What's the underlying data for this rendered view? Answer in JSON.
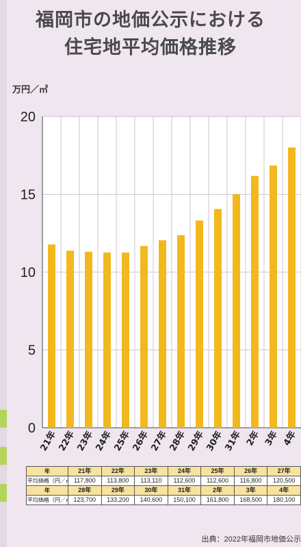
{
  "title_line1": "福岡市の地価公示における",
  "title_line2": "住宅地平均価格推移",
  "unit_label": "万円／㎡",
  "source": "出典：2022年福岡市地価公示",
  "colors": {
    "bar": "#f2b81e",
    "background": "#efe6ef",
    "grid": "#cfc6cf"
  },
  "chart_data": {
    "type": "bar",
    "categories": [
      "21年",
      "22年",
      "23年",
      "24年",
      "25年",
      "26年",
      "27年",
      "28年",
      "29年",
      "30年",
      "31年",
      "2年",
      "3年",
      "4年"
    ],
    "values": [
      11.78,
      11.38,
      11.31,
      11.26,
      11.26,
      11.68,
      12.05,
      12.37,
      13.32,
      14.06,
      15.01,
      16.18,
      16.85,
      18.01
    ],
    "ylabel": "万円／㎡",
    "yticks": [
      0,
      5,
      10,
      15,
      20
    ],
    "ylim": [
      0,
      20
    ],
    "grid": true
  },
  "table": {
    "rows": [
      {
        "header": "年",
        "cells": [
          "21年",
          "22年",
          "23年",
          "24年",
          "25年",
          "26年",
          "27年"
        ]
      },
      {
        "header": "平均価格（円／㎡）",
        "cells": [
          "117,800",
          "113,800",
          "113,110",
          "112,600",
          "112,600",
          "116,800",
          "120,500"
        ]
      },
      {
        "header": "年",
        "cells": [
          "28年",
          "29年",
          "30年",
          "31年",
          "2年",
          "3年",
          "4年"
        ]
      },
      {
        "header": "平均価格（円／㎡）",
        "cells": [
          "123,700",
          "133,200",
          "140,600",
          "150,100",
          "161,800",
          "168,500",
          "180,100"
        ]
      }
    ]
  }
}
